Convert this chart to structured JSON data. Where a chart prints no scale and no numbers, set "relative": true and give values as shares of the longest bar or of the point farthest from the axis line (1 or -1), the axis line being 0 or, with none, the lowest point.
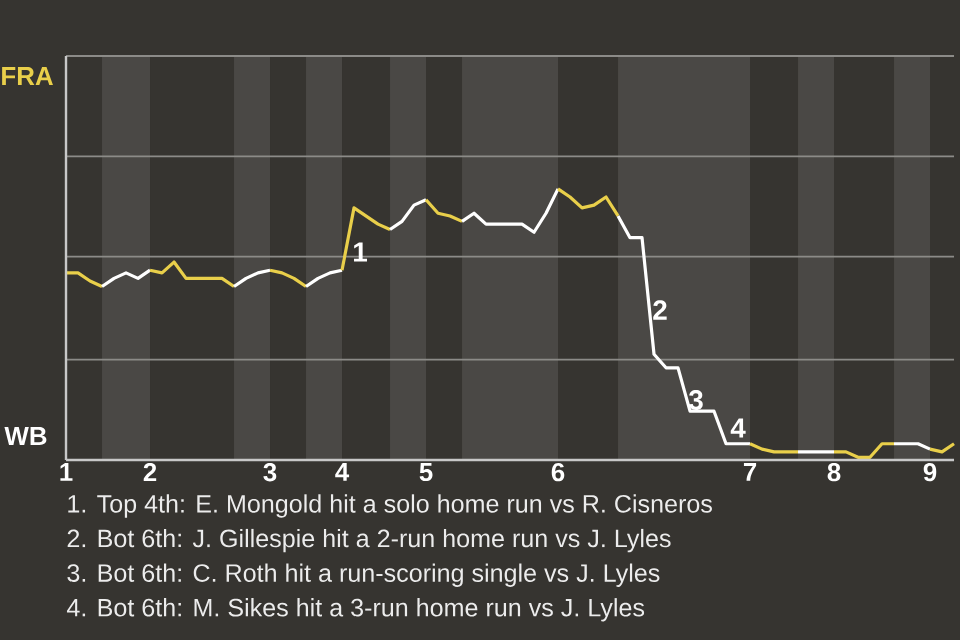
{
  "chart_data": {
    "type": "line",
    "relative": true,
    "categories": [
      "1",
      null,
      null,
      null,
      null,
      null,
      null,
      "2",
      null,
      null,
      null,
      null,
      null,
      null,
      null,
      null,
      null,
      "3",
      null,
      null,
      null,
      null,
      null,
      "4",
      null,
      null,
      null,
      null,
      null,
      null,
      "5",
      null,
      null,
      null,
      null,
      null,
      null,
      null,
      null,
      null,
      null,
      "6",
      null,
      null,
      null,
      null,
      null,
      null,
      null,
      null,
      null,
      null,
      null,
      null,
      null,
      null,
      null,
      "7",
      null,
      null,
      null,
      null,
      null,
      null,
      "8",
      null,
      null,
      null,
      null,
      null,
      null,
      null,
      "9",
      null,
      null
    ],
    "series": [
      {
        "color": "#e9cf4a",
        "values": [
          0.69,
          0.69,
          0.66,
          0.64,
          null,
          null,
          null,
          null,
          null,
          null,
          null,
          null,
          null,
          null,
          null,
          null,
          null,
          null,
          null,
          null,
          null,
          null,
          null,
          null,
          null,
          null,
          null,
          null,
          null,
          null,
          null,
          null,
          null,
          null,
          null,
          null,
          null,
          null,
          null,
          null,
          null,
          null,
          null,
          null,
          null,
          null,
          null,
          null,
          null,
          null,
          null,
          null,
          null,
          null,
          null,
          null,
          null,
          null,
          null,
          null,
          null,
          null,
          null,
          null,
          null,
          null,
          null,
          null,
          null,
          null,
          null,
          null,
          null,
          null,
          null
        ]
      },
      {
        "color": "#ffffff",
        "values": [
          null,
          null,
          null,
          0.64,
          0.67,
          0.69,
          0.67,
          0.7,
          null,
          null,
          null,
          null,
          null,
          null,
          null,
          null,
          null,
          null,
          null,
          null,
          null,
          null,
          null,
          null,
          null,
          null,
          null,
          null,
          null,
          null,
          null,
          null,
          null,
          null,
          null,
          null,
          null,
          null,
          null,
          null,
          null,
          null,
          null,
          null,
          null,
          null,
          null,
          null,
          null,
          null,
          null,
          null,
          null,
          null,
          null,
          null,
          null,
          null,
          null,
          null,
          null,
          null,
          null,
          null,
          null,
          null,
          null,
          null,
          null,
          null,
          null,
          null,
          null,
          null,
          null
        ]
      },
      {
        "color": "#e9cf4a",
        "values": [
          null,
          null,
          null,
          null,
          null,
          null,
          null,
          0.7,
          0.69,
          0.73,
          0.67,
          0.67,
          0.67,
          0.67,
          0.64,
          null,
          null,
          null,
          null,
          null,
          null,
          null,
          null,
          null,
          null,
          null,
          null,
          null,
          null,
          null,
          null,
          null,
          null,
          null,
          null,
          null,
          null,
          null,
          null,
          null,
          null,
          null,
          null,
          null,
          null,
          null,
          null,
          null,
          null,
          null,
          null,
          null,
          null,
          null,
          null,
          null,
          null,
          null,
          null,
          null,
          null,
          null,
          null,
          null,
          null,
          null,
          null,
          null,
          null,
          null,
          null,
          null,
          null,
          null,
          null
        ]
      },
      {
        "color": "#ffffff",
        "values": [
          null,
          null,
          null,
          null,
          null,
          null,
          null,
          null,
          null,
          null,
          null,
          null,
          null,
          null,
          0.64,
          0.67,
          0.69,
          0.7,
          null,
          null,
          null,
          null,
          null,
          null,
          null,
          null,
          null,
          null,
          null,
          null,
          null,
          null,
          null,
          null,
          null,
          null,
          null,
          null,
          null,
          null,
          null,
          null,
          null,
          null,
          null,
          null,
          null,
          null,
          null,
          null,
          null,
          null,
          null,
          null,
          null,
          null,
          null,
          null,
          null,
          null,
          null,
          null,
          null,
          null,
          null,
          null,
          null,
          null,
          null,
          null,
          null,
          null,
          null,
          null,
          null
        ]
      },
      {
        "color": "#e9cf4a",
        "values": [
          null,
          null,
          null,
          null,
          null,
          null,
          null,
          null,
          null,
          null,
          null,
          null,
          null,
          null,
          null,
          null,
          null,
          0.7,
          0.69,
          0.67,
          0.64,
          null,
          null,
          null,
          null,
          null,
          null,
          null,
          null,
          null,
          null,
          null,
          null,
          null,
          null,
          null,
          null,
          null,
          null,
          null,
          null,
          null,
          null,
          null,
          null,
          null,
          null,
          null,
          null,
          null,
          null,
          null,
          null,
          null,
          null,
          null,
          null,
          null,
          null,
          null,
          null,
          null,
          null,
          null,
          null,
          null,
          null,
          null,
          null,
          null,
          null,
          null,
          null,
          null,
          null
        ]
      },
      {
        "color": "#ffffff",
        "values": [
          null,
          null,
          null,
          null,
          null,
          null,
          null,
          null,
          null,
          null,
          null,
          null,
          null,
          null,
          null,
          null,
          null,
          null,
          null,
          null,
          0.64,
          0.67,
          0.69,
          0.7,
          null,
          null,
          null,
          null,
          null,
          null,
          null,
          null,
          null,
          null,
          null,
          null,
          null,
          null,
          null,
          null,
          null,
          null,
          null,
          null,
          null,
          null,
          null,
          null,
          null,
          null,
          null,
          null,
          null,
          null,
          null,
          null,
          null,
          null,
          null,
          null,
          null,
          null,
          null,
          null,
          null,
          null,
          null,
          null,
          null,
          null,
          null,
          null,
          null,
          null,
          null
        ]
      },
      {
        "color": "#e9cf4a",
        "values": [
          null,
          null,
          null,
          null,
          null,
          null,
          null,
          null,
          null,
          null,
          null,
          null,
          null,
          null,
          null,
          null,
          null,
          null,
          null,
          null,
          null,
          null,
          null,
          0.7,
          0.93,
          0.9,
          0.87,
          0.85,
          null,
          null,
          null,
          null,
          null,
          null,
          null,
          null,
          null,
          null,
          null,
          null,
          null,
          null,
          null,
          null,
          null,
          null,
          null,
          null,
          null,
          null,
          null,
          null,
          null,
          null,
          null,
          null,
          null,
          null,
          null,
          null,
          null,
          null,
          null,
          null,
          null,
          null,
          null,
          null,
          null,
          null,
          null,
          null,
          null,
          null,
          null
        ]
      },
      {
        "color": "#ffffff",
        "values": [
          null,
          null,
          null,
          null,
          null,
          null,
          null,
          null,
          null,
          null,
          null,
          null,
          null,
          null,
          null,
          null,
          null,
          null,
          null,
          null,
          null,
          null,
          null,
          null,
          null,
          null,
          null,
          0.85,
          0.88,
          0.94,
          0.96,
          null,
          null,
          null,
          null,
          null,
          null,
          null,
          null,
          null,
          null,
          null,
          null,
          null,
          null,
          null,
          null,
          null,
          null,
          null,
          null,
          null,
          null,
          null,
          null,
          null,
          null,
          null,
          null,
          null,
          null,
          null,
          null,
          null,
          null,
          null,
          null,
          null,
          null,
          null,
          null,
          null,
          null,
          null,
          null
        ]
      },
      {
        "color": "#e9cf4a",
        "values": [
          null,
          null,
          null,
          null,
          null,
          null,
          null,
          null,
          null,
          null,
          null,
          null,
          null,
          null,
          null,
          null,
          null,
          null,
          null,
          null,
          null,
          null,
          null,
          null,
          null,
          null,
          null,
          null,
          null,
          null,
          0.96,
          0.91,
          0.9,
          0.88,
          null,
          null,
          null,
          null,
          null,
          null,
          null,
          null,
          null,
          null,
          null,
          null,
          null,
          null,
          null,
          null,
          null,
          null,
          null,
          null,
          null,
          null,
          null,
          null,
          null,
          null,
          null,
          null,
          null,
          null,
          null,
          null,
          null,
          null,
          null,
          null,
          null,
          null,
          null,
          null,
          null
        ]
      },
      {
        "color": "#ffffff",
        "values": [
          null,
          null,
          null,
          null,
          null,
          null,
          null,
          null,
          null,
          null,
          null,
          null,
          null,
          null,
          null,
          null,
          null,
          null,
          null,
          null,
          null,
          null,
          null,
          null,
          null,
          null,
          null,
          null,
          null,
          null,
          null,
          null,
          null,
          0.88,
          0.91,
          0.87,
          0.87,
          0.87,
          0.87,
          0.84,
          0.91,
          1,
          null,
          null,
          null,
          null,
          null,
          null,
          null,
          null,
          null,
          null,
          null,
          null,
          null,
          null,
          null,
          null,
          null,
          null,
          null,
          null,
          null,
          null,
          null,
          null,
          null,
          null,
          null,
          null,
          null,
          null,
          null,
          null,
          null
        ]
      },
      {
        "color": "#e9cf4a",
        "values": [
          null,
          null,
          null,
          null,
          null,
          null,
          null,
          null,
          null,
          null,
          null,
          null,
          null,
          null,
          null,
          null,
          null,
          null,
          null,
          null,
          null,
          null,
          null,
          null,
          null,
          null,
          null,
          null,
          null,
          null,
          null,
          null,
          null,
          null,
          null,
          null,
          null,
          null,
          null,
          null,
          null,
          1,
          0.97,
          0.93,
          0.94,
          0.97,
          0.9,
          null,
          null,
          null,
          null,
          null,
          null,
          null,
          null,
          null,
          null,
          null,
          null,
          null,
          null,
          null,
          null,
          null,
          null,
          null,
          null,
          null,
          null,
          null,
          null,
          null,
          null,
          null,
          null
        ]
      },
      {
        "color": "#ffffff",
        "values": [
          null,
          null,
          null,
          null,
          null,
          null,
          null,
          null,
          null,
          null,
          null,
          null,
          null,
          null,
          null,
          null,
          null,
          null,
          null,
          null,
          null,
          null,
          null,
          null,
          null,
          null,
          null,
          null,
          null,
          null,
          null,
          null,
          null,
          null,
          null,
          null,
          null,
          null,
          null,
          null,
          null,
          null,
          null,
          null,
          null,
          null,
          0.9,
          0.82,
          0.82,
          0.39,
          0.34,
          0.34,
          0.18,
          0.18,
          0.18,
          0.06,
          0.06,
          0.06,
          null,
          null,
          null,
          null,
          null,
          null,
          null,
          null,
          null,
          null,
          null,
          null,
          null,
          null,
          null,
          null,
          null
        ]
      },
      {
        "color": "#e9cf4a",
        "values": [
          null,
          null,
          null,
          null,
          null,
          null,
          null,
          null,
          null,
          null,
          null,
          null,
          null,
          null,
          null,
          null,
          null,
          null,
          null,
          null,
          null,
          null,
          null,
          null,
          null,
          null,
          null,
          null,
          null,
          null,
          null,
          null,
          null,
          null,
          null,
          null,
          null,
          null,
          null,
          null,
          null,
          null,
          null,
          null,
          null,
          null,
          null,
          null,
          null,
          null,
          null,
          null,
          null,
          null,
          null,
          null,
          null,
          0.06,
          0.04,
          0.03,
          0.03,
          0.03,
          null,
          null,
          null,
          null,
          null,
          null,
          null,
          null,
          null,
          null,
          null,
          null,
          null
        ]
      },
      {
        "color": "#ffffff",
        "values": [
          null,
          null,
          null,
          null,
          null,
          null,
          null,
          null,
          null,
          null,
          null,
          null,
          null,
          null,
          null,
          null,
          null,
          null,
          null,
          null,
          null,
          null,
          null,
          null,
          null,
          null,
          null,
          null,
          null,
          null,
          null,
          null,
          null,
          null,
          null,
          null,
          null,
          null,
          null,
          null,
          null,
          null,
          null,
          null,
          null,
          null,
          null,
          null,
          null,
          null,
          null,
          null,
          null,
          null,
          null,
          null,
          null,
          null,
          null,
          null,
          null,
          0.03,
          0.03,
          0.03,
          0.03,
          null,
          null,
          null,
          null,
          null,
          null,
          null,
          null,
          null,
          null
        ]
      },
      {
        "color": "#e9cf4a",
        "values": [
          null,
          null,
          null,
          null,
          null,
          null,
          null,
          null,
          null,
          null,
          null,
          null,
          null,
          null,
          null,
          null,
          null,
          null,
          null,
          null,
          null,
          null,
          null,
          null,
          null,
          null,
          null,
          null,
          null,
          null,
          null,
          null,
          null,
          null,
          null,
          null,
          null,
          null,
          null,
          null,
          null,
          null,
          null,
          null,
          null,
          null,
          null,
          null,
          null,
          null,
          null,
          null,
          null,
          null,
          null,
          null,
          null,
          null,
          null,
          null,
          null,
          null,
          null,
          null,
          0.03,
          0.03,
          0.01,
          0.01,
          0.06,
          0.06,
          null,
          null,
          null,
          null,
          null
        ]
      },
      {
        "color": "#ffffff",
        "values": [
          null,
          null,
          null,
          null,
          null,
          null,
          null,
          null,
          null,
          null,
          null,
          null,
          null,
          null,
          null,
          null,
          null,
          null,
          null,
          null,
          null,
          null,
          null,
          null,
          null,
          null,
          null,
          null,
          null,
          null,
          null,
          null,
          null,
          null,
          null,
          null,
          null,
          null,
          null,
          null,
          null,
          null,
          null,
          null,
          null,
          null,
          null,
          null,
          null,
          null,
          null,
          null,
          null,
          null,
          null,
          null,
          null,
          null,
          null,
          null,
          null,
          null,
          null,
          null,
          null,
          null,
          null,
          null,
          null,
          0.06,
          0.06,
          0.06,
          0.04,
          null,
          null
        ]
      },
      {
        "color": "#e9cf4a",
        "values": [
          null,
          null,
          null,
          null,
          null,
          null,
          null,
          null,
          null,
          null,
          null,
          null,
          null,
          null,
          null,
          null,
          null,
          null,
          null,
          null,
          null,
          null,
          null,
          null,
          null,
          null,
          null,
          null,
          null,
          null,
          null,
          null,
          null,
          null,
          null,
          null,
          null,
          null,
          null,
          null,
          null,
          null,
          null,
          null,
          null,
          null,
          null,
          null,
          null,
          null,
          null,
          null,
          null,
          null,
          null,
          null,
          null,
          null,
          null,
          null,
          null,
          null,
          null,
          null,
          null,
          null,
          null,
          null,
          null,
          null,
          null,
          null,
          0.04,
          0.03,
          0.06
        ]
      }
    ],
    "ref_lines": [
      {
        "axis": "y",
        "value": 0.37,
        "color": "#8c8b88"
      },
      {
        "axis": "y",
        "value": 0.75,
        "color": "#8c8b88"
      },
      {
        "axis": "y",
        "value": 1.12,
        "color": "#8c8b88"
      },
      {
        "axis": "y",
        "value": 1.49,
        "color": "#8c8b88"
      }
    ],
    "annotations": [
      "FRA",
      "WB",
      "1",
      "2",
      "3",
      "4",
      "1. Top 4th: E. Mongold hit a solo home run vs R. Cisneros",
      "2. Bot 6th: J. Gillespie hit a 2-run home run vs J. Lyles",
      "3. Bot 6th: C. Roth hit a run-scoring single vs J. Lyles",
      "4. Bot 6th: M. Sikes hit a 3-run home run vs J. Lyles"
    ]
  }
}
